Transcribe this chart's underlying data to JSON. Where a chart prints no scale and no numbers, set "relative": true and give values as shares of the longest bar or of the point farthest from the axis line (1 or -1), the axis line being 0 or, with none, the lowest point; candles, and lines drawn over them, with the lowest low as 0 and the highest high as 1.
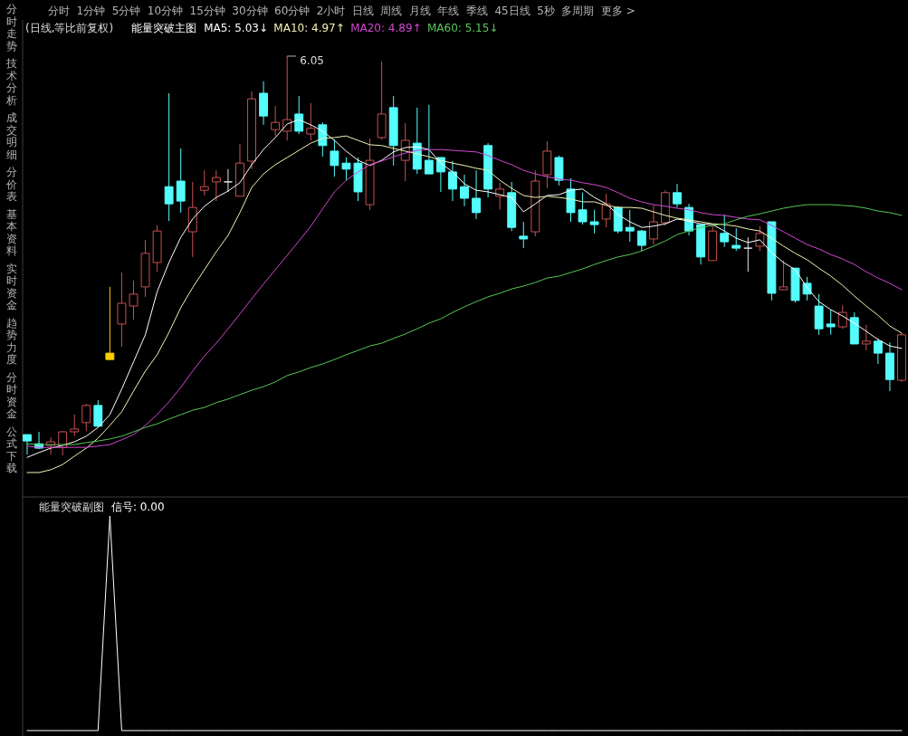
{
  "chart_data": [
    {
      "type": "other",
      "annotations": [
        "分时",
        "1分钟",
        "5分钟",
        "10分钟",
        "15分钟",
        "30分钟",
        "60分钟",
        "2小时",
        "日线",
        "周线",
        "月线",
        "年线",
        "季线",
        "45日线",
        "5秒",
        "多周期",
        "更多 >"
      ]
    },
    {
      "type": "other",
      "annotations": [
        "分时走势",
        "技术分析",
        "成交明细",
        "分价表",
        "基本资料",
        "实时资金",
        "趋势力度",
        "分时资金",
        "公式下载"
      ]
    },
    {
      "type": "candlestick",
      "title": "(日线,等比前复权)",
      "subtitle": "能量突破主图",
      "relative": true,
      "legend": "top left",
      "categories": [
        null,
        null,
        null,
        null,
        null,
        null,
        null,
        null,
        null,
        null,
        null,
        null,
        null,
        null,
        null,
        null,
        null,
        null,
        null,
        null,
        null,
        null,
        null,
        null,
        null,
        null,
        null,
        null,
        null,
        null,
        null,
        null,
        null,
        null,
        null,
        null,
        null,
        null,
        null,
        null,
        null,
        null,
        null,
        null,
        null,
        null,
        null,
        null,
        null,
        null,
        null,
        null,
        null,
        null,
        null,
        null,
        null,
        null,
        null,
        null,
        null,
        null,
        null,
        null,
        null,
        null,
        null,
        null,
        null,
        null,
        null,
        null,
        null,
        null,
        null
      ],
      "ohlc": [
        [
          0.052,
          0.052,
          0.002,
          0.036
        ],
        [
          0.029,
          0.059,
          0.016,
          0.018
        ],
        [
          0.025,
          0.045,
          0.002,
          0.034
        ],
        [
          0.02,
          0.061,
          0,
          0.059
        ],
        [
          0.059,
          0.102,
          0.048,
          0.066
        ],
        [
          0.082,
          0.129,
          0.061,
          0.125
        ],
        [
          0.125,
          0.138,
          0.07,
          0.073
        ],
        [
          0.256,
          0.422,
          0.24,
          0.24
        ],
        [
          0.329,
          0.458,
          0.272,
          0.381
        ],
        [
          0.374,
          0.438,
          0.34,
          0.404
        ],
        [
          0.422,
          0.54,
          0.397,
          0.506
        ],
        [
          0.483,
          0.576,
          0.46,
          0.562
        ],
        [
          0.673,
          0.907,
          0.587,
          0.63
        ],
        [
          0.687,
          0.769,
          0.608,
          0.637
        ],
        [
          0.56,
          0.685,
          0.497,
          0.621
        ],
        [
          0.664,
          0.714,
          0.651,
          0.673
        ],
        [
          0.685,
          0.714,
          0.637,
          0.696
        ],
        [
          0.685,
          0.717,
          0.66,
          0.685
        ],
        [
          0.649,
          0.78,
          0.649,
          0.732
        ],
        [
          0.737,
          0.912,
          0.717,
          0.893
        ],
        [
          0.907,
          0.937,
          0.828,
          0.85
        ],
        [
          0.816,
          0.875,
          0.8,
          0.834
        ],
        [
          0.812,
          1,
          0.789,
          0.841
        ],
        [
          0.855,
          0.9,
          0.805,
          0.812
        ],
        [
          0.805,
          0.882,
          0.789,
          0.819
        ],
        [
          0.828,
          0.834,
          0.748,
          0.776
        ],
        [
          0.762,
          0.791,
          0.698,
          0.726
        ],
        [
          0.732,
          0.746,
          0.689,
          0.717
        ],
        [
          0.732,
          0.746,
          0.637,
          0.66
        ],
        [
          0.628,
          0.794,
          0.615,
          0.739
        ],
        [
          0.796,
          0.986,
          0.791,
          0.855
        ],
        [
          0.871,
          0.9,
          0.726,
          0.776
        ],
        [
          0.739,
          0.832,
          0.687,
          0.789
        ],
        [
          0.782,
          0.871,
          0.705,
          0.717
        ],
        [
          0.739,
          0.878,
          0.705,
          0.705
        ],
        [
          0.746,
          0.746,
          0.66,
          0.71
        ],
        [
          0.71,
          0.737,
          0.637,
          0.667
        ],
        [
          0.673,
          0.703,
          0.624,
          0.644
        ],
        [
          0.644,
          0.714,
          0.592,
          0.608
        ],
        [
          0.776,
          0.782,
          0.646,
          0.667
        ],
        [
          0.649,
          0.683,
          0.615,
          0.667
        ],
        [
          0.658,
          0.685,
          0.562,
          0.571
        ],
        [
          0.549,
          0.585,
          0.519,
          0.542
        ],
        [
          0.56,
          0.714,
          0.549,
          0.687
        ],
        [
          0.703,
          0.787,
          0.669,
          0.762
        ],
        [
          0.746,
          0.751,
          0.676,
          0.689
        ],
        [
          0.667,
          0.694,
          0.585,
          0.608
        ],
        [
          0.615,
          0.658,
          0.578,
          0.585
        ],
        [
          0.585,
          0.615,
          0.556,
          0.578
        ],
        [
          0.592,
          0.655,
          0.571,
          0.63
        ],
        [
          0.621,
          0.624,
          0.556,
          0.562
        ],
        [
          0.571,
          0.615,
          0.535,
          0.562
        ],
        [
          0.562,
          0.565,
          0.512,
          0.526
        ],
        [
          0.542,
          0.626,
          0.528,
          0.585
        ],
        [
          0.583,
          0.664,
          0.576,
          0.658
        ],
        [
          0.658,
          0.68,
          0.621,
          0.63
        ],
        [
          0.621,
          0.63,
          0.551,
          0.562
        ],
        [
          0.578,
          0.578,
          0.478,
          0.497
        ],
        [
          0.488,
          0.578,
          0.488,
          0.562
        ],
        [
          0.556,
          0.603,
          0.522,
          0.535
        ],
        [
          0.526,
          0.569,
          0.512,
          0.519
        ],
        [
          0.519,
          0.546,
          0.46,
          0.519
        ],
        [
          0.524,
          0.574,
          0.512,
          0.556
        ],
        [
          0.585,
          0.585,
          0.388,
          0.406
        ],
        [
          0.415,
          0.488,
          0.415,
          0.422
        ],
        [
          0.469,
          0.469,
          0.383,
          0.388
        ],
        [
          0.431,
          0.447,
          0.388,
          0.404
        ],
        [
          0.374,
          0.404,
          0.302,
          0.317
        ],
        [
          0.329,
          0.365,
          0.302,
          0.322
        ],
        [
          0.322,
          0.376,
          0.317,
          0.358
        ],
        [
          0.345,
          0.358,
          0.279,
          0.279
        ],
        [
          0.279,
          0.327,
          0.263,
          0.286
        ],
        [
          0.286,
          0.293,
          0.229,
          0.256
        ],
        [
          0.256,
          0.283,
          0.161,
          0.19
        ],
        [
          0.188,
          0.306,
          0.184,
          0.302
        ]
      ],
      "colors": [
        "#54fcfc",
        "#54fcfc",
        "#c85050",
        "#c85050",
        "#c85050",
        "#c85050",
        "#54fcfc",
        "#ffcc00",
        "#c85050",
        "#c85050",
        "#c85050",
        "#c85050",
        "#54fcfc",
        "#54fcfc",
        "#c85050",
        "#c85050",
        "#c85050",
        "#e6e6e6",
        "#c85050",
        "#c85050",
        "#54fcfc",
        "#c85050",
        "#c85050",
        "#54fcfc",
        "#c85050",
        "#54fcfc",
        "#54fcfc",
        "#54fcfc",
        "#54fcfc",
        "#c85050",
        "#c85050",
        "#54fcfc",
        "#c85050",
        "#54fcfc",
        "#54fcfc",
        "#54fcfc",
        "#54fcfc",
        "#54fcfc",
        "#54fcfc",
        "#54fcfc",
        "#c85050",
        "#54fcfc",
        "#54fcfc",
        "#c85050",
        "#c85050",
        "#54fcfc",
        "#54fcfc",
        "#54fcfc",
        "#54fcfc",
        "#c85050",
        "#54fcfc",
        "#54fcfc",
        "#54fcfc",
        "#c85050",
        "#c85050",
        "#54fcfc",
        "#54fcfc",
        "#54fcfc",
        "#c85050",
        "#54fcfc",
        "#54fcfc",
        "#e6e6e6",
        "#c85050",
        "#54fcfc",
        "#c85050",
        "#54fcfc",
        "#54fcfc",
        "#54fcfc",
        "#54fcfc",
        "#c85050",
        "#54fcfc",
        "#c85050",
        "#54fcfc",
        "#54fcfc",
        "#c85050"
      ],
      "series": [
        {
          "name": "MA5: 5.03↓",
          "type": "line",
          "color": "#ffffff",
          "values": [
            -0.005,
            0.007,
            0.018,
            0.025,
            0.034,
            0.048,
            0.07,
            0.102,
            0.166,
            0.234,
            0.302,
            0.41,
            0.483,
            0.546,
            0.592,
            0.624,
            0.646,
            0.662,
            0.683,
            0.728,
            0.766,
            0.796,
            0.83,
            0.841,
            0.828,
            0.812,
            0.789,
            0.762,
            0.739,
            0.726,
            0.739,
            0.76,
            0.771,
            0.773,
            0.766,
            0.732,
            0.71,
            0.68,
            0.664,
            0.66,
            0.653,
            0.646,
            0.61,
            0.63,
            0.651,
            0.653,
            0.664,
            0.667,
            0.646,
            0.63,
            0.603,
            0.585,
            0.571,
            0.574,
            0.58,
            0.592,
            0.587,
            0.58,
            0.578,
            0.562,
            0.544,
            0.533,
            0.54,
            0.508,
            0.483,
            0.465,
            0.42,
            0.385,
            0.365,
            0.349,
            0.331,
            0.311,
            0.29,
            0.274,
            0.268
          ]
        },
        {
          "name": "MA10: 4.97↑",
          "type": "line",
          "color": "#f2f2b4",
          "values": [
            -0.043,
            -0.043,
            -0.036,
            -0.023,
            -0.002,
            0.018,
            0.043,
            0.075,
            0.109,
            0.161,
            0.211,
            0.252,
            0.308,
            0.37,
            0.42,
            0.465,
            0.51,
            0.551,
            0.608,
            0.671,
            0.705,
            0.728,
            0.746,
            0.764,
            0.782,
            0.794,
            0.796,
            0.8,
            0.789,
            0.778,
            0.776,
            0.769,
            0.762,
            0.755,
            0.748,
            0.739,
            0.732,
            0.726,
            0.719,
            0.714,
            0.689,
            0.669,
            0.651,
            0.646,
            0.649,
            0.646,
            0.642,
            0.635,
            0.635,
            0.626,
            0.621,
            0.621,
            0.619,
            0.61,
            0.601,
            0.594,
            0.59,
            0.585,
            0.58,
            0.578,
            0.574,
            0.567,
            0.562,
            0.544,
            0.524,
            0.506,
            0.49,
            0.469,
            0.449,
            0.426,
            0.399,
            0.374,
            0.351,
            0.324,
            0.306
          ]
        },
        {
          "name": "MA20: 4.89↑",
          "type": "line",
          "color": "#d048d0",
          "values": [
            0.023,
            0.02,
            0.02,
            0.02,
            0.02,
            0.02,
            0.023,
            0.027,
            0.039,
            0.052,
            0.075,
            0.102,
            0.134,
            0.17,
            0.211,
            0.249,
            0.281,
            0.317,
            0.354,
            0.392,
            0.429,
            0.465,
            0.501,
            0.537,
            0.574,
            0.617,
            0.66,
            0.689,
            0.71,
            0.728,
            0.737,
            0.748,
            0.757,
            0.764,
            0.766,
            0.766,
            0.764,
            0.762,
            0.76,
            0.751,
            0.739,
            0.728,
            0.714,
            0.705,
            0.698,
            0.692,
            0.689,
            0.683,
            0.678,
            0.671,
            0.658,
            0.644,
            0.635,
            0.628,
            0.624,
            0.619,
            0.615,
            0.608,
            0.603,
            0.601,
            0.596,
            0.592,
            0.59,
            0.576,
            0.56,
            0.544,
            0.528,
            0.517,
            0.503,
            0.492,
            0.478,
            0.46,
            0.444,
            0.431,
            0.415
          ]
        },
        {
          "name": "MA60: 5.15↓",
          "type": "line",
          "color": "#55c855",
          "values": [
            0.029,
            0.027,
            0.027,
            0.027,
            0.027,
            0.032,
            0.036,
            0.041,
            0.048,
            0.059,
            0.07,
            0.079,
            0.091,
            0.102,
            0.113,
            0.12,
            0.132,
            0.141,
            0.152,
            0.163,
            0.172,
            0.184,
            0.2,
            0.209,
            0.22,
            0.229,
            0.24,
            0.252,
            0.263,
            0.274,
            0.281,
            0.293,
            0.304,
            0.317,
            0.331,
            0.342,
            0.358,
            0.372,
            0.385,
            0.397,
            0.406,
            0.417,
            0.424,
            0.433,
            0.444,
            0.449,
            0.458,
            0.467,
            0.478,
            0.488,
            0.497,
            0.503,
            0.512,
            0.524,
            0.537,
            0.553,
            0.562,
            0.571,
            0.576,
            0.58,
            0.59,
            0.599,
            0.605,
            0.612,
            0.619,
            0.624,
            0.628,
            0.628,
            0.628,
            0.626,
            0.624,
            0.619,
            0.612,
            0.608,
            0.601
          ]
        }
      ],
      "annotations": [
        "6.05"
      ]
    },
    {
      "type": "line",
      "title": "能量突破副图",
      "relative": true,
      "legend": "top left",
      "categories": [
        null,
        null,
        null,
        null,
        null,
        null,
        null,
        null,
        null,
        null,
        null,
        null,
        null,
        null,
        null,
        null,
        null,
        null,
        null,
        null,
        null,
        null,
        null,
        null,
        null,
        null,
        null,
        null,
        null,
        null,
        null,
        null,
        null,
        null,
        null,
        null,
        null,
        null,
        null,
        null,
        null,
        null,
        null,
        null,
        null,
        null,
        null,
        null,
        null,
        null,
        null,
        null,
        null,
        null,
        null,
        null,
        null,
        null,
        null,
        null,
        null,
        null,
        null,
        null,
        null,
        null,
        null,
        null,
        null,
        null,
        null,
        null,
        null,
        null,
        null
      ],
      "series": [
        {
          "name": "信号: 0.00",
          "color": "#ffffff",
          "values": [
            0,
            0,
            0,
            0,
            0,
            0,
            0,
            1,
            0,
            0,
            0,
            0,
            0,
            0,
            0,
            0,
            0,
            0,
            0,
            0,
            0,
            0,
            0,
            0,
            0,
            0,
            0,
            0,
            0,
            0,
            0,
            0,
            0,
            0,
            0,
            0,
            0,
            0,
            0,
            0,
            0,
            0,
            0,
            0,
            0,
            0,
            0,
            0,
            0,
            0,
            0,
            0,
            0,
            0,
            0,
            0,
            0,
            0,
            0,
            0,
            0,
            0,
            0,
            0,
            0,
            0,
            0,
            0,
            0,
            0,
            0,
            0,
            0,
            0,
            0
          ]
        }
      ]
    }
  ]
}
